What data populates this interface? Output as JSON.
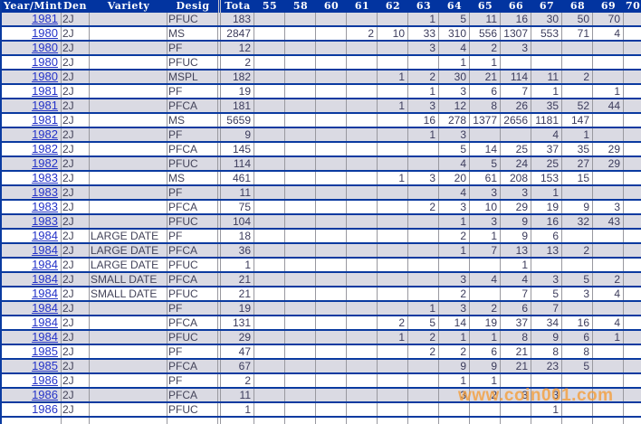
{
  "header": {
    "columns": [
      "Year/Mint",
      "Den",
      "Variety",
      "Desig",
      "Tota",
      "55",
      "58",
      "60",
      "61",
      "62",
      "63",
      "64",
      "65",
      "66",
      "67",
      "68",
      "69",
      "70"
    ]
  },
  "grade_keys": [
    "55",
    "58",
    "60",
    "61",
    "62",
    "63",
    "64",
    "65",
    "66",
    "67",
    "68",
    "69",
    "70"
  ],
  "rows": [
    {
      "year": "1981",
      "den": "2J",
      "variety": "",
      "desig": "PFUC",
      "total": "183",
      "linked": true,
      "grades": {
        "63": "1",
        "64": "5",
        "65": "11",
        "66": "16",
        "67": "30",
        "68": "50",
        "69": "70"
      }
    },
    {
      "year": "1980",
      "den": "2J",
      "variety": "",
      "desig": "MS",
      "total": "2847",
      "linked": true,
      "grades": {
        "61": "2",
        "62": "10",
        "63": "33",
        "64": "310",
        "65": "556",
        "66": "1307",
        "67": "553",
        "68": "71",
        "69": "4"
      }
    },
    {
      "year": "1980",
      "den": "2J",
      "variety": "",
      "desig": "PF",
      "total": "12",
      "linked": true,
      "grades": {
        "63": "3",
        "64": "4",
        "65": "2",
        "66": "3"
      }
    },
    {
      "year": "1980",
      "den": "2J",
      "variety": "",
      "desig": "PFUC",
      "total": "2",
      "linked": true,
      "grades": {
        "64": "1",
        "65": "1"
      }
    },
    {
      "year": "1980",
      "den": "2J",
      "variety": "",
      "desig": "MSPL",
      "total": "182",
      "linked": true,
      "grades": {
        "62": "1",
        "63": "2",
        "64": "30",
        "65": "21",
        "66": "114",
        "67": "11",
        "68": "2"
      }
    },
    {
      "year": "1981",
      "den": "2J",
      "variety": "",
      "desig": "PF",
      "total": "19",
      "linked": true,
      "grades": {
        "63": "1",
        "64": "3",
        "65": "6",
        "66": "7",
        "67": "1",
        "69": "1"
      }
    },
    {
      "year": "1981",
      "den": "2J",
      "variety": "",
      "desig": "PFCA",
      "total": "181",
      "linked": true,
      "grades": {
        "62": "1",
        "63": "3",
        "64": "12",
        "65": "8",
        "66": "26",
        "67": "35",
        "68": "52",
        "69": "44"
      }
    },
    {
      "year": "1981",
      "den": "2J",
      "variety": "",
      "desig": "MS",
      "total": "5659",
      "linked": true,
      "grades": {
        "63": "16",
        "64": "278",
        "65": "1377",
        "66": "2656",
        "67": "1181",
        "68": "147"
      }
    },
    {
      "year": "1982",
      "den": "2J",
      "variety": "",
      "desig": "PF",
      "total": "9",
      "linked": true,
      "grades": {
        "63": "1",
        "64": "3",
        "67": "4",
        "68": "1"
      }
    },
    {
      "year": "1982",
      "den": "2J",
      "variety": "",
      "desig": "PFCA",
      "total": "145",
      "linked": true,
      "grades": {
        "64": "5",
        "65": "14",
        "66": "25",
        "67": "37",
        "68": "35",
        "69": "29"
      }
    },
    {
      "year": "1982",
      "den": "2J",
      "variety": "",
      "desig": "PFUC",
      "total": "114",
      "linked": true,
      "grades": {
        "64": "4",
        "65": "5",
        "66": "24",
        "67": "25",
        "68": "27",
        "69": "29"
      }
    },
    {
      "year": "1983",
      "den": "2J",
      "variety": "",
      "desig": "MS",
      "total": "461",
      "linked": true,
      "grades": {
        "62": "1",
        "63": "3",
        "64": "20",
        "65": "61",
        "66": "208",
        "67": "153",
        "68": "15"
      }
    },
    {
      "year": "1983",
      "den": "2J",
      "variety": "",
      "desig": "PF",
      "total": "11",
      "linked": true,
      "grades": {
        "64": "4",
        "65": "3",
        "66": "3",
        "67": "1"
      }
    },
    {
      "year": "1983",
      "den": "2J",
      "variety": "",
      "desig": "PFCA",
      "total": "75",
      "linked": true,
      "grades": {
        "63": "2",
        "64": "3",
        "65": "10",
        "66": "29",
        "67": "19",
        "68": "9",
        "69": "3"
      }
    },
    {
      "year": "1983",
      "den": "2J",
      "variety": "",
      "desig": "PFUC",
      "total": "104",
      "linked": true,
      "grades": {
        "64": "1",
        "65": "3",
        "66": "9",
        "67": "16",
        "68": "32",
        "69": "43"
      }
    },
    {
      "year": "1984",
      "den": "2J",
      "variety": "LARGE DATE",
      "desig": "PF",
      "total": "18",
      "linked": true,
      "grades": {
        "64": "2",
        "65": "1",
        "66": "9",
        "67": "6"
      }
    },
    {
      "year": "1984",
      "den": "2J",
      "variety": "LARGE DATE",
      "desig": "PFCA",
      "total": "36",
      "linked": true,
      "grades": {
        "64": "1",
        "65": "7",
        "66": "13",
        "67": "13",
        "68": "2"
      }
    },
    {
      "year": "1984",
      "den": "2J",
      "variety": "LARGE DATE",
      "desig": "PFUC",
      "total": "1",
      "linked": true,
      "grades": {
        "66": "1"
      }
    },
    {
      "year": "1984",
      "den": "2J",
      "variety": "SMALL DATE",
      "desig": "PFCA",
      "total": "21",
      "linked": true,
      "grades": {
        "64": "3",
        "65": "4",
        "66": "4",
        "67": "3",
        "68": "5",
        "69": "2"
      }
    },
    {
      "year": "1984",
      "den": "2J",
      "variety": "SMALL DATE",
      "desig": "PFUC",
      "total": "21",
      "linked": true,
      "grades": {
        "64": "2",
        "66": "7",
        "67": "5",
        "68": "3",
        "69": "4"
      }
    },
    {
      "year": "1984",
      "den": "2J",
      "variety": "",
      "desig": "PF",
      "total": "19",
      "linked": true,
      "grades": {
        "63": "1",
        "64": "3",
        "65": "2",
        "66": "6",
        "67": "7"
      }
    },
    {
      "year": "1984",
      "den": "2J",
      "variety": "",
      "desig": "PFCA",
      "total": "131",
      "linked": true,
      "grades": {
        "62": "2",
        "63": "5",
        "64": "14",
        "65": "19",
        "66": "37",
        "67": "34",
        "68": "16",
        "69": "4"
      }
    },
    {
      "year": "1984",
      "den": "2J",
      "variety": "",
      "desig": "PFUC",
      "total": "29",
      "linked": true,
      "grades": {
        "62": "1",
        "63": "2",
        "64": "1",
        "65": "1",
        "66": "8",
        "67": "9",
        "68": "6",
        "69": "1"
      }
    },
    {
      "year": "1985",
      "den": "2J",
      "variety": "",
      "desig": "PF",
      "total": "47",
      "linked": true,
      "grades": {
        "63": "2",
        "64": "2",
        "65": "6",
        "66": "21",
        "67": "8",
        "68": "8"
      }
    },
    {
      "year": "1985",
      "den": "2J",
      "variety": "",
      "desig": "PFCA",
      "total": "67",
      "linked": true,
      "grades": {
        "64": "9",
        "65": "9",
        "66": "21",
        "67": "23",
        "68": "5"
      }
    },
    {
      "year": "1986",
      "den": "2J",
      "variety": "",
      "desig": "PF",
      "total": "2",
      "linked": true,
      "grades": {
        "64": "1",
        "65": "1"
      }
    },
    {
      "year": "1986",
      "den": "2J",
      "variety": "",
      "desig": "PFCA",
      "total": "11",
      "linked": true,
      "grades": {
        "64": "3",
        "65": "2",
        "66": "3",
        "67": "3"
      }
    },
    {
      "year": "1986",
      "den": "2J",
      "variety": "",
      "desig": "PFUC",
      "total": "1",
      "linked": false,
      "grades": {
        "67": "1"
      }
    }
  ],
  "watermark": {
    "text": "www.coin001.com"
  },
  "colors": {
    "header_bg": "#0234a0",
    "separator": "#0a3aa0",
    "row_alt": "#dadae3",
    "link": "#2433c8",
    "watermark": "#f49e3a"
  }
}
